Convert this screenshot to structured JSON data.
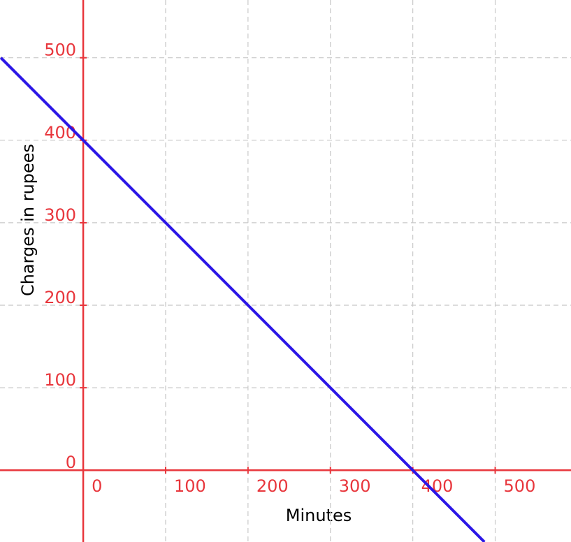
{
  "chart_data": {
    "type": "line",
    "x_label": "Minutes",
    "y_label": "Charges in rupees",
    "x": [
      -100,
      487
    ],
    "series": [
      {
        "color": "#2b16e6",
        "values": [
          500,
          -87
        ]
      }
    ],
    "xlim": [
      -101,
      592
    ],
    "ylim": [
      -87,
      570
    ],
    "xticks": [
      0,
      100,
      200,
      300,
      400,
      500
    ],
    "yticks": [
      0,
      100,
      200,
      300,
      400,
      500
    ],
    "grid": true,
    "axis_color": "#e8363c"
  }
}
